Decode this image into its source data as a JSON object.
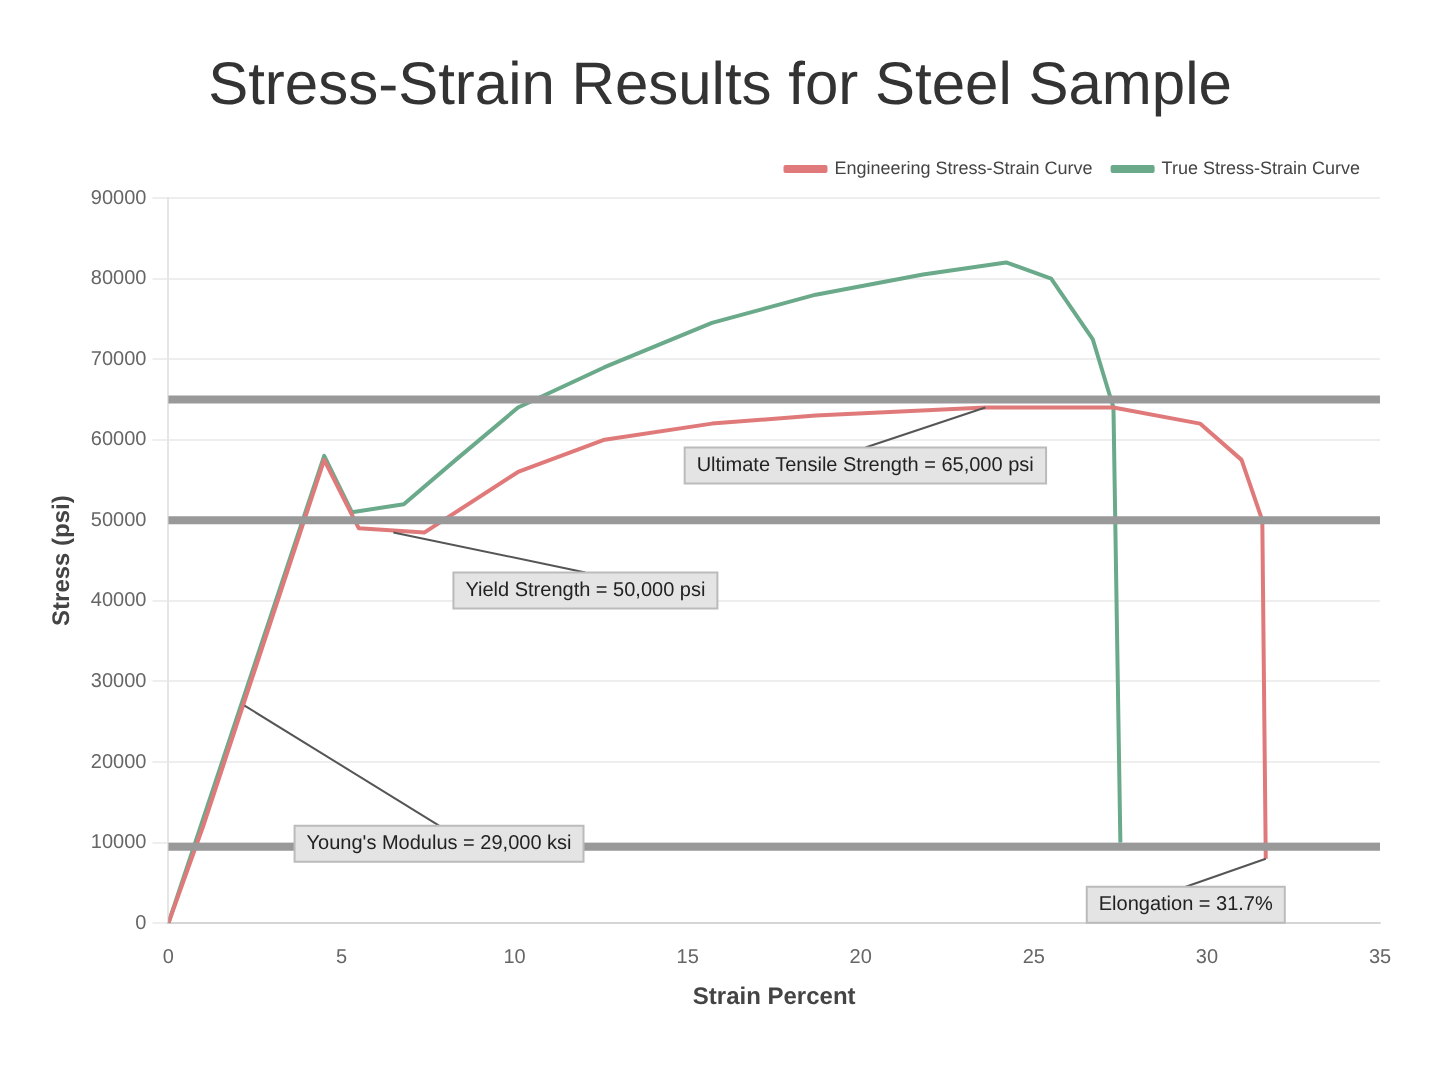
{
  "chart_data": {
    "type": "line",
    "title": "Stress-Strain Results for Steel Sample",
    "xlabel": "Strain Percent",
    "ylabel": "Stress (psi)",
    "xlim": [
      0,
      35
    ],
    "xticks": [
      0,
      5,
      10,
      15,
      20,
      25,
      30,
      35
    ],
    "ylim": [
      0,
      90000
    ],
    "yticks": [
      0,
      10000,
      20000,
      30000,
      40000,
      50000,
      60000,
      70000,
      80000,
      90000
    ],
    "grid": "y",
    "legend": "top right",
    "marker": "none",
    "series": [
      {
        "name": "Engineering Stress-Strain Curve",
        "color": "#e07a7a",
        "x": [
          0,
          1,
          4.5,
          5.5,
          7.4,
          10.1,
          12.6,
          15.7,
          18.7,
          23.6,
          27.3,
          29.8,
          31.0,
          31.6,
          31.7
        ],
        "values": [
          0,
          12000,
          57500,
          49000,
          48500,
          56000,
          60000,
          62000,
          63000,
          64000,
          64000,
          62000,
          57500,
          50000,
          8000
        ]
      },
      {
        "name": "True Stress-Strain Curve",
        "color": "#6aaa8a",
        "x": [
          0,
          4.5,
          5.3,
          6.8,
          8.3,
          10.1,
          12.6,
          15.7,
          18.7,
          21.8,
          24.2,
          25.5,
          26.7,
          27.3,
          27.5
        ],
        "values": [
          0,
          58000,
          51000,
          52000,
          57500,
          64000,
          69000,
          74500,
          78000,
          80500,
          82000,
          80000,
          72500,
          64000,
          10000
        ]
      }
    ],
    "ref_lines": [
      {
        "axis": "y",
        "value": 65000,
        "color": "#999999"
      },
      {
        "axis": "y",
        "value": 50000,
        "color": "#999999"
      },
      {
        "axis": "y",
        "value": 9500,
        "color": "#999999"
      }
    ],
    "annotations": [
      {
        "text": "Ultimate Tensile Strength = 65,000 psi",
        "x": 23.6,
        "y": 64000
      },
      {
        "text": "Yield Strength = 50,000 psi",
        "x": 6.5,
        "y": 48500
      },
      {
        "text": "Young's Modulus = 29,000 ksi",
        "x": 2.2,
        "y": 27000
      },
      {
        "text": "Elongation = 31.7%",
        "x": 31.7,
        "y": 8000
      }
    ]
  }
}
